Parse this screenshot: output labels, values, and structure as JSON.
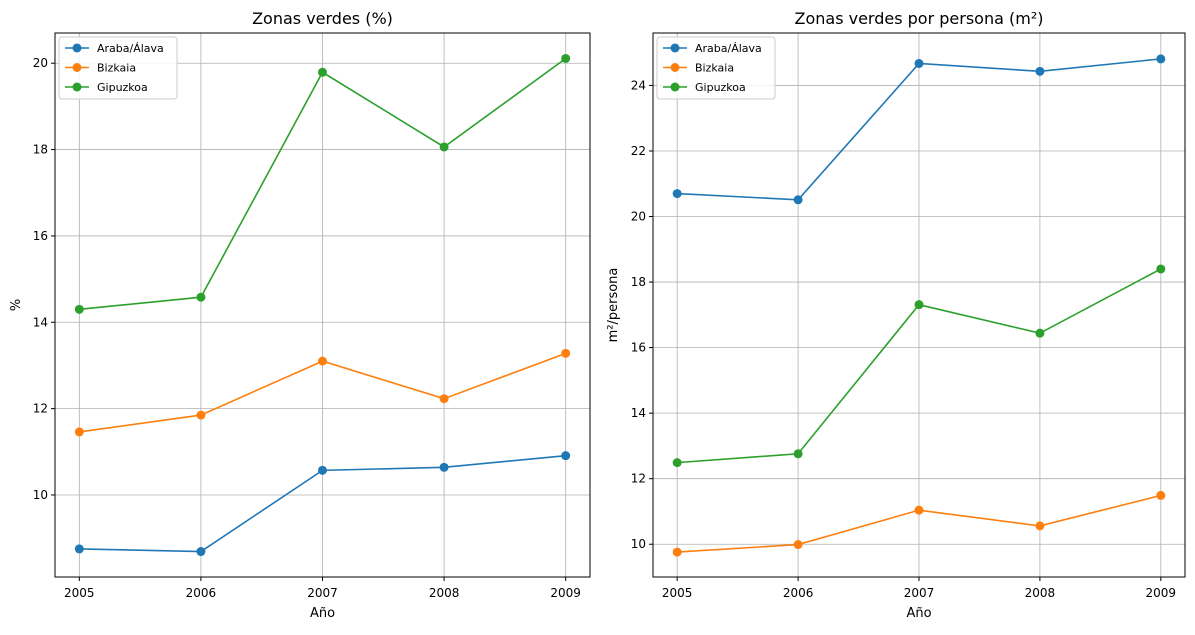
{
  "chart_data": [
    {
      "type": "line",
      "title": "Zonas verdes (%)",
      "xlabel": "Año",
      "ylabel": "%",
      "x": [
        2005,
        2006,
        2007,
        2008,
        2009
      ],
      "ylim": [
        8.1,
        20.7
      ],
      "yticks": [
        10,
        12,
        14,
        16,
        18,
        20
      ],
      "grid": true,
      "legend_position": "top-left",
      "series": [
        {
          "name": "Araba/Álava",
          "color": "#1f77b4",
          "values": [
            8.75,
            8.69,
            10.57,
            10.64,
            10.91
          ]
        },
        {
          "name": "Bizkaia",
          "color": "#ff7f0e",
          "values": [
            11.46,
            11.85,
            13.1,
            12.23,
            13.28
          ]
        },
        {
          "name": "Gipuzkoa",
          "color": "#2ca02c",
          "values": [
            14.3,
            14.58,
            19.79,
            18.06,
            20.11
          ]
        }
      ]
    },
    {
      "type": "line",
      "title": "Zonas verdes por persona (m²)",
      "xlabel": "Año",
      "ylabel": "m²/persona",
      "x": [
        2005,
        2006,
        2007,
        2008,
        2009
      ],
      "ylim": [
        9.0,
        25.6
      ],
      "yticks": [
        10,
        12,
        14,
        16,
        18,
        20,
        22,
        24
      ],
      "grid": true,
      "legend_position": "top-left",
      "series": [
        {
          "name": "Araba/Álava",
          "color": "#1f77b4",
          "values": [
            20.7,
            20.51,
            24.67,
            24.43,
            24.81
          ]
        },
        {
          "name": "Bizkaia",
          "color": "#ff7f0e",
          "values": [
            9.76,
            9.99,
            11.04,
            10.56,
            11.49
          ]
        },
        {
          "name": "Gipuzkoa",
          "color": "#2ca02c",
          "values": [
            12.49,
            12.76,
            17.31,
            16.44,
            18.4
          ]
        }
      ]
    }
  ]
}
